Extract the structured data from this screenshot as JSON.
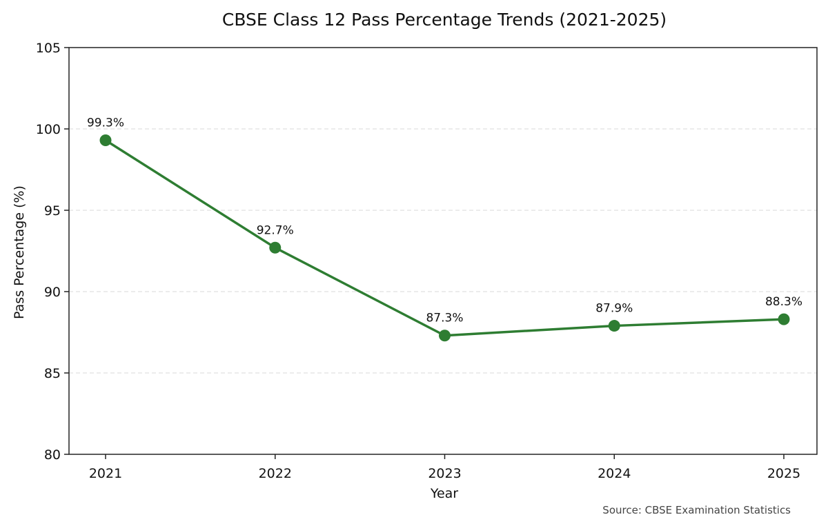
{
  "chart_data": {
    "type": "line",
    "title": "CBSE Class 12 Pass Percentage Trends (2021-2025)",
    "xlabel": "Year",
    "ylabel": "Pass Percentage (%)",
    "categories": [
      "2021",
      "2022",
      "2023",
      "2024",
      "2025"
    ],
    "ylim": [
      80,
      105
    ],
    "yticks": [
      80,
      85,
      90,
      95,
      100,
      105
    ],
    "grid": true,
    "series": [
      {
        "values": [
          99.3,
          92.7,
          87.3,
          87.9,
          88.3
        ],
        "labels": [
          "99.3%",
          "92.7%",
          "87.3%",
          "87.9%",
          "88.3%"
        ]
      }
    ],
    "colors": {
      "line": "#2e7d32",
      "marker": "#2e7d32"
    },
    "source": "Source: CBSE Examination Statistics"
  }
}
